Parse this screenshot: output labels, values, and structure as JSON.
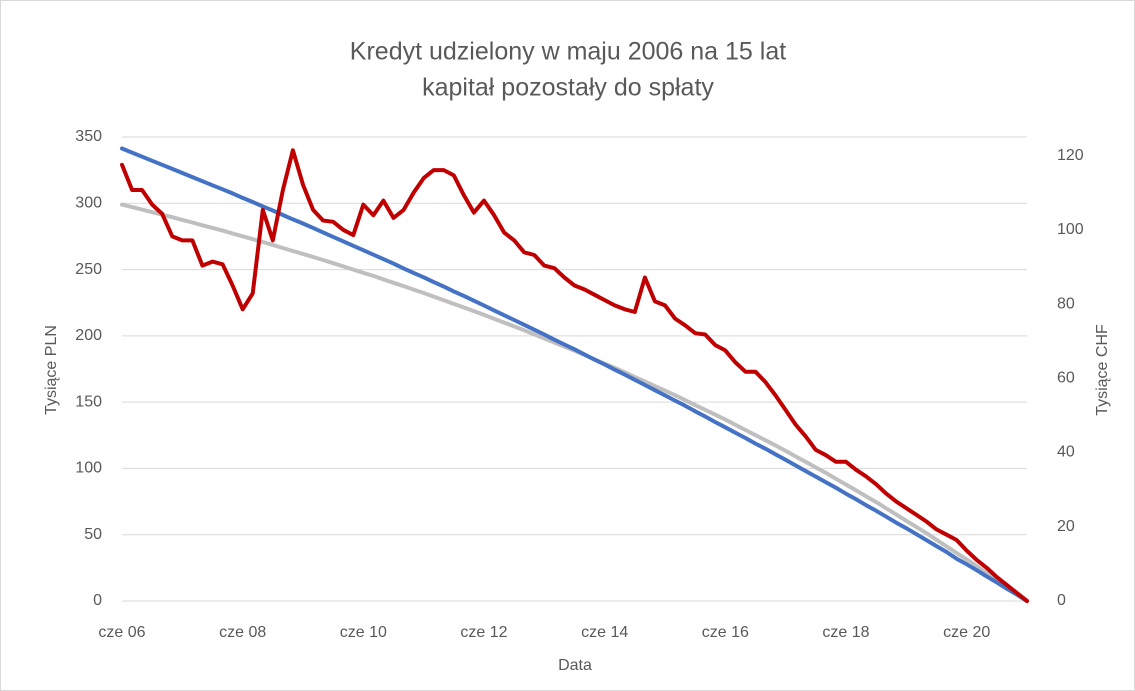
{
  "chart_data": {
    "type": "line",
    "title": [
      "Kredyt udzielony w maju 2006 na 15 lat",
      "kapitał pozostały do spłaty"
    ],
    "x_label": "Data",
    "y_label": "Tysiące PLN",
    "y2_label": "Tysiące CHF",
    "categories": [
      "cze 06",
      null,
      null,
      null,
      null,
      null,
      null,
      null,
      null,
      null,
      null,
      null,
      "cze 08",
      null,
      null,
      null,
      null,
      null,
      null,
      null,
      null,
      null,
      null,
      null,
      "cze 10",
      null,
      null,
      null,
      null,
      null,
      null,
      null,
      null,
      null,
      null,
      null,
      "cze 12",
      null,
      null,
      null,
      null,
      null,
      null,
      null,
      null,
      null,
      null,
      null,
      "cze 14",
      null,
      null,
      null,
      null,
      null,
      null,
      null,
      null,
      null,
      null,
      null,
      "cze 16",
      null,
      null,
      null,
      null,
      null,
      null,
      null,
      null,
      null,
      null,
      null,
      "cze 18",
      null,
      null,
      null,
      null,
      null,
      null,
      null,
      null,
      null,
      null,
      null,
      "cze 20",
      null,
      null,
      null,
      null,
      null,
      null
    ],
    "ylim": [
      0,
      350
    ],
    "yticks": [
      0,
      50,
      100,
      150,
      200,
      250,
      300,
      350
    ],
    "y2lim": [
      0,
      125
    ],
    "y2ticks": [
      0,
      20,
      40,
      60,
      80,
      100,
      120
    ],
    "grid": true,
    "series": [
      {
        "color": "#bfbfbf",
        "values": [
          299.0,
          297.1,
          295.2,
          293.3,
          291.4,
          289.5,
          287.5,
          285.5,
          283.4,
          281.4,
          279.4,
          277.2,
          275.1,
          272.9,
          270.8,
          268.6,
          266.3,
          264.0,
          261.8,
          259.5,
          257.2,
          254.8,
          252.4,
          250.0,
          247.6,
          245.2,
          242.6,
          240.0,
          237.5,
          234.9,
          232.3,
          229.6,
          226.9,
          224.1,
          221.4,
          218.7,
          215.8,
          212.9,
          210.0,
          207.1,
          204.2,
          201.1,
          198.1,
          195.0,
          191.9,
          188.8,
          185.5,
          182.3,
          179.0,
          175.8,
          172.5,
          169.0,
          165.6,
          162.1,
          158.7,
          155.2,
          151.5,
          147.8,
          144.2,
          140.5,
          136.8,
          132.9,
          129.0,
          125.1,
          121.2,
          117.3,
          113.2,
          109.0,
          104.9,
          100.7,
          96.6,
          92.2,
          87.8,
          83.4,
          79.0,
          74.6,
          69.9,
          65.2,
          60.5,
          55.9,
          51.2,
          46.2,
          41.2,
          36.2,
          31.4,
          26.4,
          21.1,
          15.8,
          10.5,
          5.3,
          0
        ]
      },
      {
        "color": "#4472c4",
        "axis": "y2",
        "values": [
          121.9,
          120.8,
          119.7,
          118.6,
          117.5,
          116.4,
          115.3,
          114.2,
          113.1,
          112.0,
          110.9,
          109.8,
          108.6,
          107.5,
          106.3,
          105.2,
          104.0,
          102.8,
          101.7,
          100.5,
          99.3,
          98.1,
          96.9,
          95.7,
          94.5,
          93.3,
          92.1,
          90.9,
          89.6,
          88.4,
          87.2,
          85.9,
          84.7,
          83.4,
          82.2,
          80.9,
          79.6,
          78.3,
          77.0,
          75.7,
          74.4,
          73.1,
          71.8,
          70.4,
          69.1,
          67.8,
          66.4,
          65.0,
          63.7,
          62.3,
          61.0,
          59.6,
          58.2,
          56.8,
          55.4,
          54.0,
          52.6,
          51.1,
          49.7,
          48.2,
          46.8,
          45.3,
          43.9,
          42.4,
          41.0,
          39.5,
          38.0,
          36.5,
          35.0,
          33.5,
          32.0,
          30.5,
          28.9,
          27.4,
          25.8,
          24.3,
          22.7,
          21.1,
          19.6,
          18.0,
          16.4,
          14.8,
          13.2,
          11.4,
          9.9,
          8.3,
          6.6,
          5.0,
          3.3,
          1.7,
          0
        ]
      },
      {
        "color": "#c00000",
        "values": [
          329,
          310,
          310,
          299,
          292,
          275,
          272,
          272,
          253,
          256,
          254,
          238,
          220,
          232,
          295,
          272,
          310,
          340,
          314,
          295,
          287,
          286,
          280,
          276,
          299,
          291,
          302,
          289,
          295,
          308,
          319,
          325,
          325,
          321,
          306,
          293,
          302,
          291,
          278,
          272,
          263,
          261,
          253,
          251,
          244,
          238,
          235,
          231,
          227,
          223,
          220,
          218,
          244,
          226,
          223,
          213,
          208,
          202,
          201,
          193,
          189,
          180,
          173,
          173,
          165,
          155,
          144,
          133,
          124,
          114,
          110,
          105,
          105,
          99,
          94,
          88,
          81,
          75,
          70,
          65,
          60,
          54,
          50,
          46,
          38,
          31,
          25,
          18,
          12,
          6,
          0
        ]
      }
    ]
  }
}
